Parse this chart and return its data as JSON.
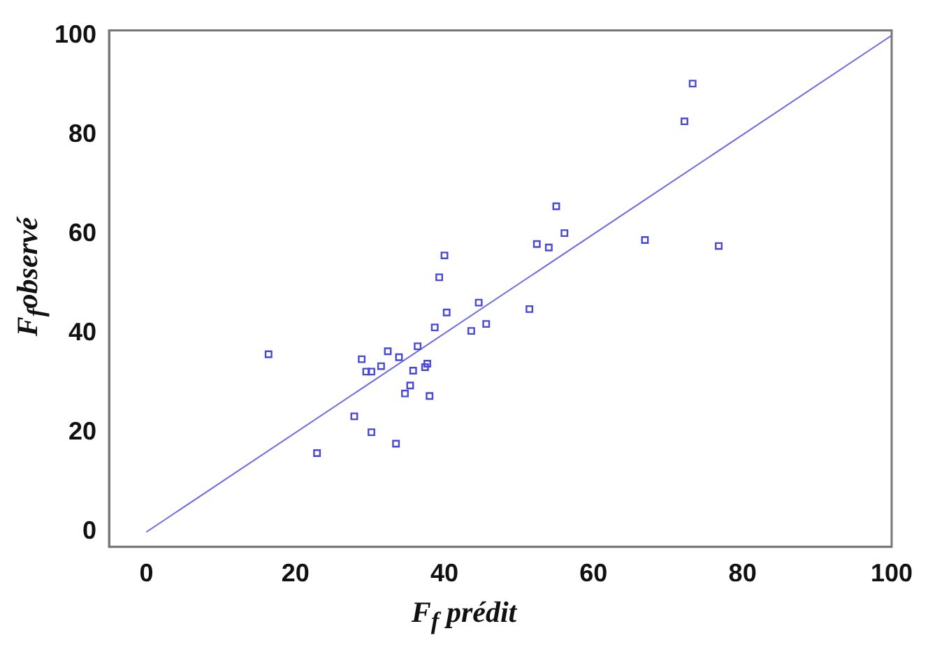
{
  "chart_data": {
    "type": "scatter",
    "xlabel": "F$_{f}$ prédit",
    "ylabel": "F$_{f}$observé",
    "xlim": [
      -5,
      100
    ],
    "ylim": [
      -3,
      101
    ],
    "xticks": [
      0,
      20,
      40,
      60,
      80,
      100
    ],
    "yticks": [
      0,
      20,
      40,
      60,
      80,
      100
    ],
    "grid": false,
    "legend": false,
    "marker": "square",
    "series": [
      {
        "color": "#4848d8",
        "x": [
          16.4,
          22.9,
          27.9,
          28.9,
          29.5,
          30.2,
          30.2,
          31.5,
          32.4,
          33.5,
          33.9,
          34.7,
          35.4,
          35.8,
          36.4,
          37.4,
          37.7,
          38.0,
          38.7,
          39.3,
          40.0,
          40.3,
          43.6,
          44.6,
          45.6,
          51.4,
          52.4,
          54.0,
          55.0,
          56.1,
          66.9,
          72.2,
          73.3,
          76.8
        ],
        "values": [
          35.8,
          15.9,
          23.3,
          34.8,
          32.3,
          32.3,
          20.1,
          33.4,
          36.4,
          17.8,
          35.2,
          27.9,
          29.5,
          32.5,
          37.4,
          33.2,
          33.9,
          27.4,
          41.2,
          51.3,
          55.7,
          44.2,
          40.5,
          46.2,
          41.9,
          44.9,
          58.0,
          57.3,
          65.6,
          60.2,
          58.8,
          82.7,
          90.3,
          57.6
        ]
      },
      {
        "type": "line",
        "color": "#6a6ae0",
        "x": [
          0,
          100
        ],
        "values": [
          0,
          100
        ],
        "marker": "none",
        "line_style": "solid"
      }
    ]
  }
}
